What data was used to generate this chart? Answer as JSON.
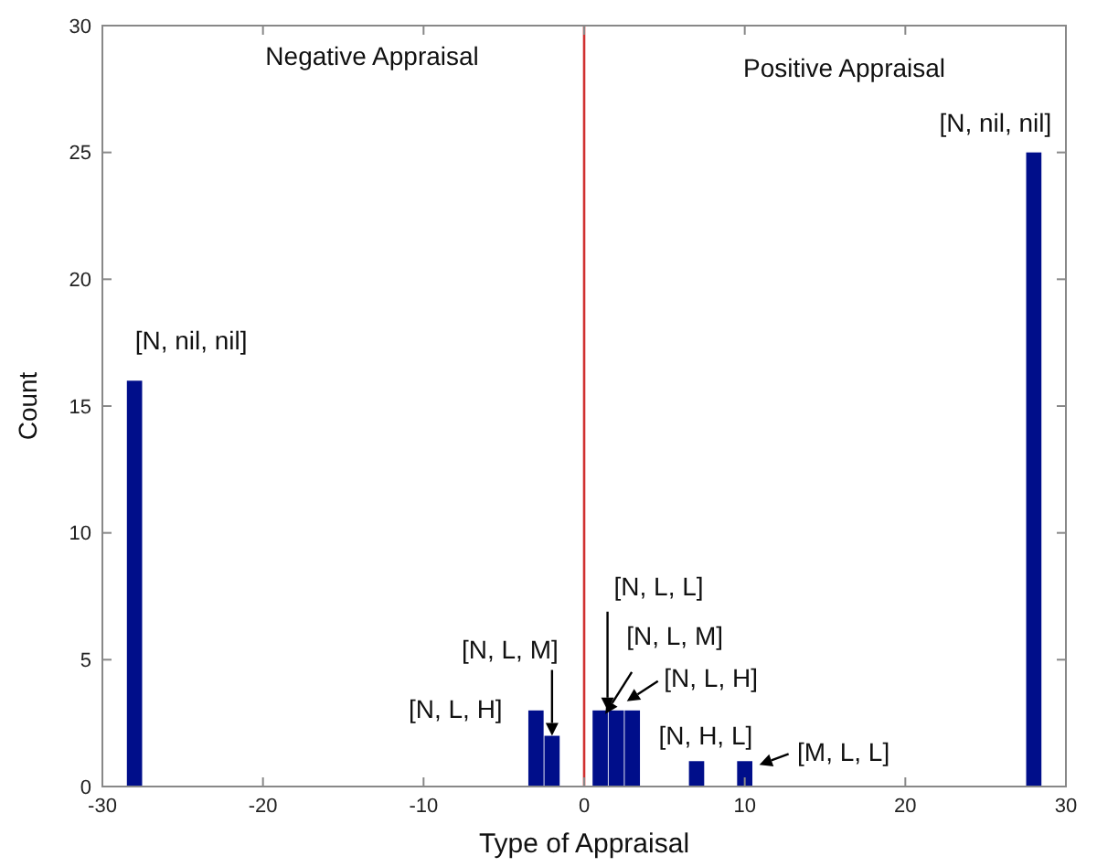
{
  "chart_data": {
    "type": "bar",
    "xlabel": "Type of Appraisal",
    "ylabel": "Count",
    "x": [
      -28,
      -3,
      -2,
      1,
      2,
      3,
      7,
      10,
      28
    ],
    "values": [
      16,
      3,
      2,
      3,
      3,
      3,
      1,
      1,
      25
    ],
    "color": "#000e8a",
    "xlim": [
      -30,
      30
    ],
    "xticks": [
      -30,
      -20,
      -10,
      0,
      10,
      20,
      30
    ],
    "ylim": [
      0,
      30
    ],
    "yticks": [
      0,
      5,
      10,
      15,
      20,
      25,
      30
    ],
    "grid": false,
    "ref_lines": [
      {
        "axis": "x",
        "value": 0,
        "color": "#d03030"
      }
    ],
    "annotations": [
      "Negative Appraisal",
      "Positive Appraisal",
      {
        "text": "[N, nil, nil]",
        "x": -28,
        "y": 16
      },
      {
        "text": "[N, nil, nil]",
        "x": 28,
        "y": 25
      },
      {
        "text": "[N, L, H]",
        "x": -3,
        "y": 3
      },
      {
        "text": "[N, L, M]",
        "x": -2,
        "y": 2
      },
      {
        "text": "[N, L, L]",
        "x": 1,
        "y": 3
      },
      {
        "text": "[N, L, M]",
        "x": 2,
        "y": 3
      },
      {
        "text": "[N, L, H]",
        "x": 3,
        "y": 3
      },
      {
        "text": "[N, H, L]",
        "x": 7,
        "y": 1
      },
      {
        "text": "[M, L, L]",
        "x": 10,
        "y": 1
      }
    ]
  }
}
